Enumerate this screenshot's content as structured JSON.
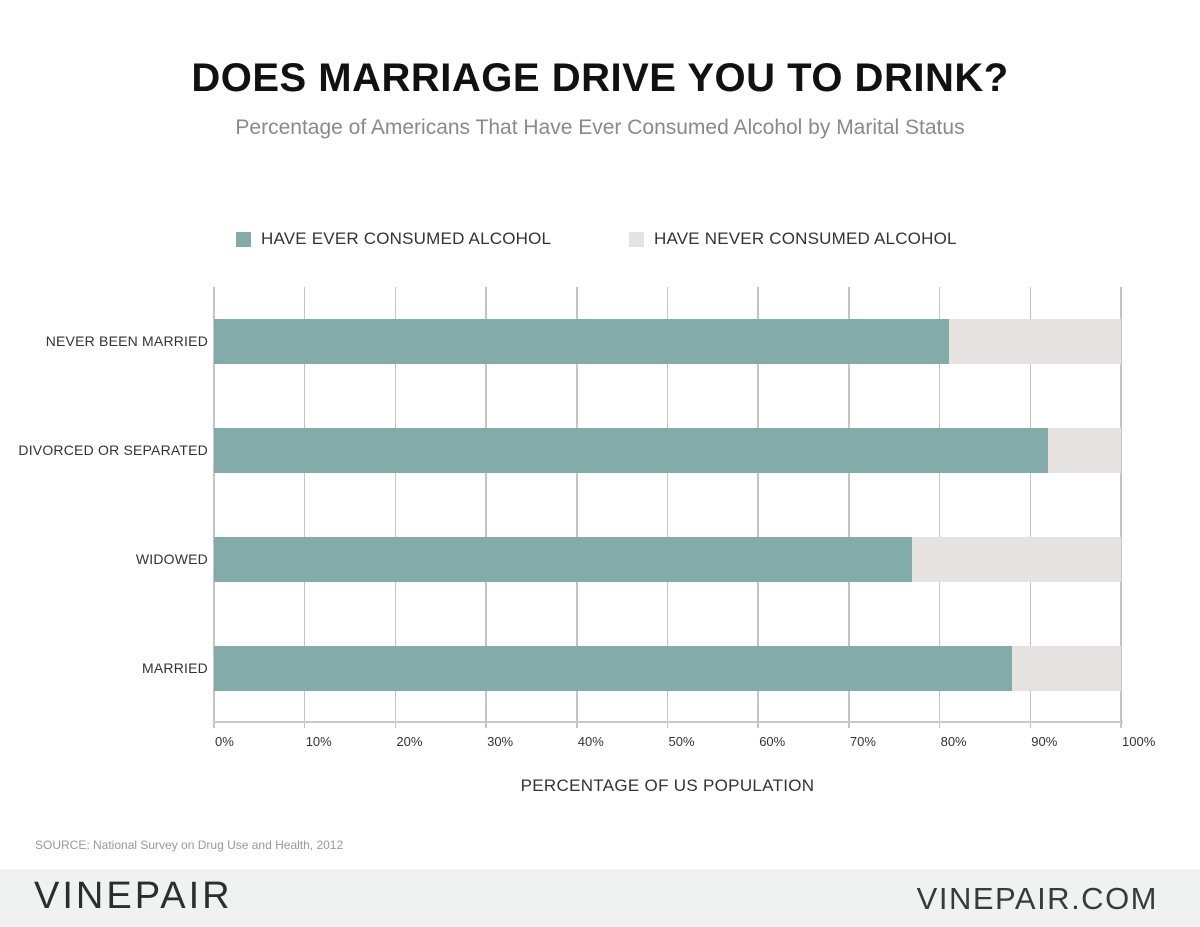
{
  "header": {
    "title": "DOES MARRIAGE DRIVE YOU TO DRINK?",
    "subtitle": "Percentage of Americans That Have Ever Consumed Alcohol by Marital Status"
  },
  "legend": [
    {
      "label": "HAVE EVER CONSUMED ALCOHOL",
      "color": "#82abaa"
    },
    {
      "label": "HAVE NEVER CONSUMED ALCOHOL",
      "color": "#e5e2df"
    }
  ],
  "x_ticks": [
    "0%",
    "10%",
    "20%",
    "30%",
    "40%",
    "50%",
    "60%",
    "70%",
    "80%",
    "90%",
    "100%"
  ],
  "xlabel": "PERCENTAGE OF US POPULATION",
  "source": "SOURCE: National Survey on Drug Use and Health, 2012",
  "footer": {
    "logo": "VINEPAIR",
    "site": "VINEPAIR.COM"
  },
  "chart_data": {
    "type": "bar",
    "orientation": "horizontal",
    "stacked": true,
    "title": "DOES MARRIAGE DRIVE YOU TO DRINK?",
    "subtitle": "Percentage of Americans That Have Ever Consumed Alcohol by Marital Status",
    "categories": [
      "NEVER BEEN MARRIED",
      "DIVORCED OR SEPARATED",
      "WIDOWED",
      "MARRIED"
    ],
    "series": [
      {
        "name": "HAVE EVER CONSUMED ALCOHOL",
        "color": "#82abaa",
        "values": [
          81,
          92,
          77,
          88
        ]
      },
      {
        "name": "HAVE NEVER CONSUMED ALCOHOL",
        "color": "#e5e2df",
        "values": [
          19,
          8,
          23,
          12
        ]
      }
    ],
    "xlabel": "PERCENTAGE OF US POPULATION",
    "ylabel": "",
    "xlim": [
      0,
      100
    ],
    "x_ticks": [
      "0%",
      "10%",
      "20%",
      "30%",
      "40%",
      "50%",
      "60%",
      "70%",
      "80%",
      "90%",
      "100%"
    ],
    "grid": "vertical",
    "legend_position": "top",
    "annotations": [
      "SOURCE: National Survey on Drug Use and Health, 2012"
    ]
  }
}
